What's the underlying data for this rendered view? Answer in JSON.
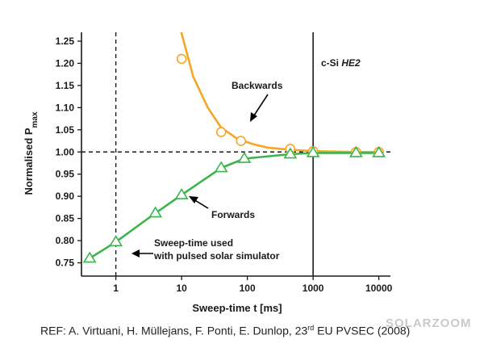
{
  "chart_data": {
    "type": "line",
    "x_scale": "log",
    "x_ticks": [
      1,
      10,
      100,
      1000,
      10000
    ],
    "x_tick_labels": [
      "1",
      "10",
      "100",
      "1000",
      "10000"
    ],
    "xlim": [
      0.3,
      15000
    ],
    "ylim": [
      0.72,
      1.27
    ],
    "y_ticks": [
      0.75,
      0.8,
      0.85,
      0.9,
      0.95,
      1.0,
      1.05,
      1.1,
      1.15,
      1.2,
      1.25
    ],
    "y_tick_labels": [
      "0.75",
      "0.80",
      "0.85",
      "0.90",
      "0.95",
      "1.00",
      "1.05",
      "1.10",
      "1.15",
      "1.20",
      "1.25"
    ],
    "xlabel": "Sweep-time t [ms]",
    "ylabel_main": "Normalised P",
    "ylabel_sub": "max",
    "series": [
      {
        "name": "Backwards",
        "color": "#f5a623",
        "marker": "circle",
        "points": [
          {
            "x": 10,
            "y": 1.21
          },
          {
            "x": 40,
            "y": 1.045
          },
          {
            "x": 80,
            "y": 1.025
          },
          {
            "x": 450,
            "y": 1.007
          },
          {
            "x": 1000,
            "y": 1.002
          },
          {
            "x": 4500,
            "y": 1.0
          },
          {
            "x": 10000,
            "y": 1.0
          }
        ],
        "curve": [
          {
            "x": 9.5,
            "y": 1.28
          },
          {
            "x": 15,
            "y": 1.17
          },
          {
            "x": 25,
            "y": 1.1
          },
          {
            "x": 40,
            "y": 1.055
          },
          {
            "x": 70,
            "y": 1.03
          },
          {
            "x": 120,
            "y": 1.018
          },
          {
            "x": 200,
            "y": 1.01
          },
          {
            "x": 450,
            "y": 1.005
          },
          {
            "x": 1000,
            "y": 1.002
          },
          {
            "x": 4500,
            "y": 1.0
          },
          {
            "x": 10000,
            "y": 1.0
          }
        ]
      },
      {
        "name": "Forwards",
        "color": "#3cb44b",
        "marker": "triangle",
        "points": [
          {
            "x": 0.4,
            "y": 0.76
          },
          {
            "x": 1,
            "y": 0.797
          },
          {
            "x": 4,
            "y": 0.862
          },
          {
            "x": 10,
            "y": 0.903
          },
          {
            "x": 40,
            "y": 0.964
          },
          {
            "x": 90,
            "y": 0.985
          },
          {
            "x": 450,
            "y": 0.995
          },
          {
            "x": 1000,
            "y": 0.998
          },
          {
            "x": 4500,
            "y": 0.998
          },
          {
            "x": 10000,
            "y": 0.998
          }
        ]
      }
    ],
    "reference_lines": {
      "h_dashed_y": 1.0,
      "v_dashed_x": 1,
      "v_solid_x": 1000
    },
    "annotations": {
      "backwards_label": "Backwards",
      "forwards_label": "Forwards",
      "region_label_plain": "c-Si ",
      "region_label_italic": "HE2",
      "sweep_note_line1": "Sweep-time used",
      "sweep_note_line2": "with pulsed solar simulator"
    }
  },
  "reference_text_before": "REF: A. Virtuani, H. Müllejans, F. Ponti, E. Dunlop, 23",
  "reference_superscript": "rd",
  "reference_text_after": " EU PVSEC (2008)",
  "watermark": "SOLARZOOM",
  "colors": {
    "backwards": "#f5a623",
    "forwards": "#3cb44b",
    "axes": "#1a1a1a"
  }
}
